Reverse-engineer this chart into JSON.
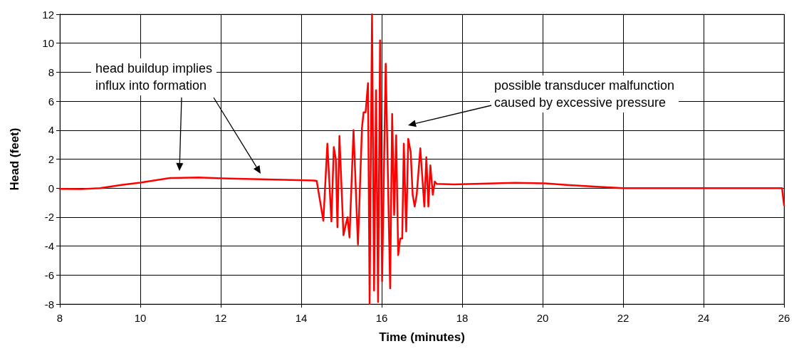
{
  "chart_data": {
    "type": "line",
    "xlabel": "Time (minutes)",
    "ylabel": "Head (feet)",
    "xlim": [
      8,
      26
    ],
    "xticks": [
      8,
      10,
      12,
      14,
      16,
      18,
      20,
      22,
      24,
      26
    ],
    "ylim": [
      -8,
      12
    ],
    "yticks": [
      -8,
      -6,
      -4,
      -2,
      0,
      2,
      4,
      6,
      8,
      10,
      12
    ],
    "grid": true,
    "marker": "none",
    "line_style": "solid",
    "annotations": [
      "head buildup implies\ninflux into formation",
      "possible transducer malfunction\ncaused by excessive pressure"
    ],
    "series": [
      {
        "color": "#ff0000",
        "x": [
          8,
          8.52,
          9,
          9.53,
          10,
          10.74,
          11.45,
          12.04,
          13.94,
          14.3,
          14.385,
          14.55,
          14.65,
          14.75,
          14.81,
          14.86,
          14.9,
          14.95,
          15.05,
          15.15,
          15.2,
          15.3,
          15.41,
          15.51,
          15.55,
          15.6,
          15.66,
          15.7,
          15.76,
          15.81,
          15.86,
          15.91,
          15.96,
          16.01,
          16.1,
          16.21,
          16.26,
          16.31,
          16.36,
          16.41,
          16.46,
          16.51,
          16.55,
          16.61,
          16.66,
          16.72,
          16.77,
          16.82,
          16.87,
          16.96,
          17.06,
          17.11,
          17.16,
          17.21,
          17.27,
          17.32,
          17.37,
          17.8,
          19.31,
          20.06,
          20.6,
          21.35,
          22,
          25.95,
          26
        ],
        "values": [
          -0.05,
          -0.07,
          0,
          0.22,
          0.38,
          0.7,
          0.73,
          0.67,
          0.55,
          0.52,
          0.5,
          -2.25,
          3.07,
          -2.3,
          2.83,
          2,
          -2.7,
          3.6,
          -3.25,
          -2,
          -3.4,
          4,
          -3.9,
          4.14,
          5.23,
          5.23,
          7.25,
          -8,
          12,
          -7.07,
          6.76,
          -7.85,
          10.2,
          -6.43,
          8.59,
          -6.92,
          5.12,
          -1.84,
          3.65,
          -4.62,
          -3.48,
          -3.48,
          3.07,
          -2.99,
          3.4,
          2.5,
          -0.46,
          -1.27,
          -0.46,
          2.75,
          -1.27,
          2.14,
          -1.27,
          1.57,
          -0.46,
          0.45,
          0.29,
          0.25,
          0.37,
          0.33,
          0.22,
          0.09,
          0,
          0,
          -1.18
        ]
      }
    ]
  }
}
